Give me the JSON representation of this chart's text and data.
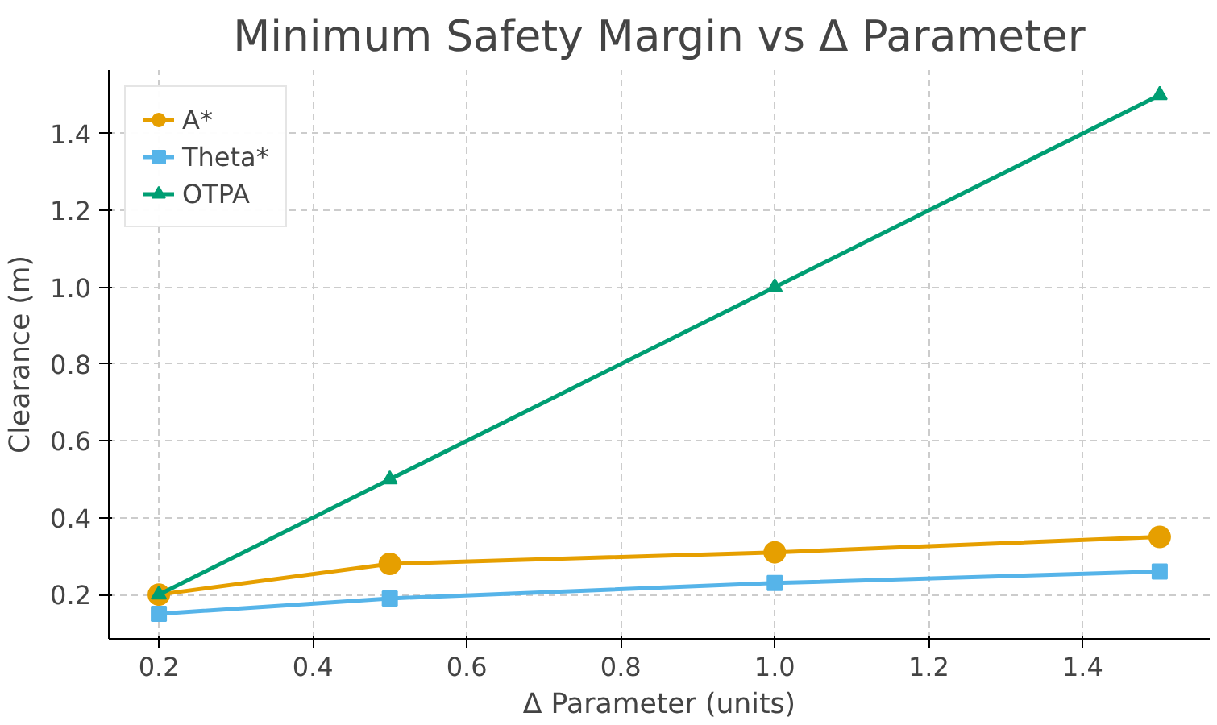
{
  "chart_data": {
    "type": "line",
    "title": "Minimum Safety Margin vs Δ Parameter",
    "xlabel": "Δ Parameter (units)",
    "ylabel": "Clearance (m)",
    "x": [
      0.2,
      0.5,
      1.0,
      1.5
    ],
    "series": [
      {
        "name": "A*",
        "color": "#e69f00",
        "values": [
          0.2,
          0.28,
          0.31,
          0.35
        ],
        "marker": "circle"
      },
      {
        "name": "Theta*",
        "color": "#56b4e9",
        "values": [
          0.15,
          0.19,
          0.23,
          0.26
        ],
        "marker": "square"
      },
      {
        "name": "OTPA",
        "color": "#009e73",
        "values": [
          0.2,
          0.5,
          1.0,
          1.5
        ],
        "marker": "triangle"
      }
    ],
    "xlim": [
      0.135,
      1.565
    ],
    "ylim": [
      0.085,
      1.565
    ],
    "xticks": [
      0.2,
      0.4,
      0.6,
      0.8,
      {
        "value": 1,
        "label": "1.0"
      },
      1.2,
      1.4
    ],
    "yticks": [
      0.2,
      0.4,
      0.6,
      0.8,
      {
        "value": 1,
        "label": "1.0"
      },
      1.2,
      1.4
    ],
    "grid": true,
    "legend": "top left",
    "line_style": "solid"
  }
}
